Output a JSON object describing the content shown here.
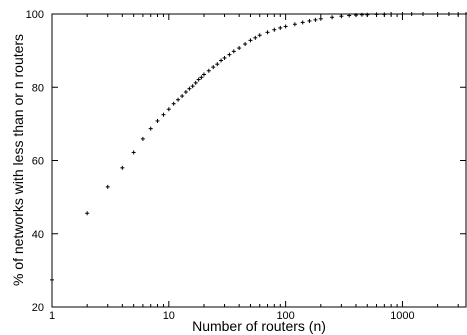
{
  "chart_data": {
    "type": "scatter",
    "title": "",
    "xlabel": "Number of routers (n)",
    "ylabel": "% of networks with less than or n routers",
    "x_scale": "log",
    "xlim": [
      1,
      3500
    ],
    "ylim": [
      20,
      100
    ],
    "x_ticks": [
      {
        "value": 1,
        "label": "1"
      },
      {
        "value": 10,
        "label": "10"
      },
      {
        "value": 100,
        "label": "100"
      },
      {
        "value": 1000,
        "label": "1000"
      }
    ],
    "y_ticks": [
      {
        "value": 20,
        "label": "20"
      },
      {
        "value": 40,
        "label": "40"
      },
      {
        "value": 60,
        "label": "60"
      },
      {
        "value": 80,
        "label": "80"
      },
      {
        "value": 100,
        "label": "100"
      }
    ],
    "grid": false,
    "legend": "none",
    "marker": "+",
    "series": [
      {
        "x": [
          1,
          2,
          3,
          4,
          5,
          6,
          7,
          8,
          9,
          10,
          11,
          12,
          13,
          14,
          15,
          16,
          17,
          18,
          19,
          20,
          22,
          24,
          26,
          28,
          30,
          33,
          36,
          40,
          45,
          50,
          55,
          60,
          70,
          80,
          90,
          100,
          120,
          140,
          160,
          180,
          200,
          250,
          300,
          350,
          400,
          450,
          500,
          600,
          700,
          800,
          1000,
          1200,
          1500,
          2000,
          2500,
          3000,
          3500
        ],
        "y": [
          27.4,
          45.6,
          52.8,
          58.0,
          62.2,
          65.9,
          68.7,
          70.8,
          72.5,
          74.0,
          75.5,
          76.6,
          77.6,
          78.7,
          79.6,
          80.3,
          81.2,
          82.1,
          82.7,
          83.5,
          84.5,
          85.5,
          86.3,
          87.3,
          88.0,
          88.9,
          89.8,
          90.7,
          91.8,
          92.8,
          93.5,
          94.2,
          95.0,
          95.7,
          96.2,
          96.6,
          97.2,
          97.7,
          98.1,
          98.4,
          98.7,
          99.1,
          99.4,
          99.6,
          99.7,
          99.8,
          99.8,
          99.9,
          99.9,
          100.0,
          100.0,
          100.0,
          100.0,
          100.0,
          100.0,
          100.0,
          100.0
        ]
      }
    ]
  }
}
